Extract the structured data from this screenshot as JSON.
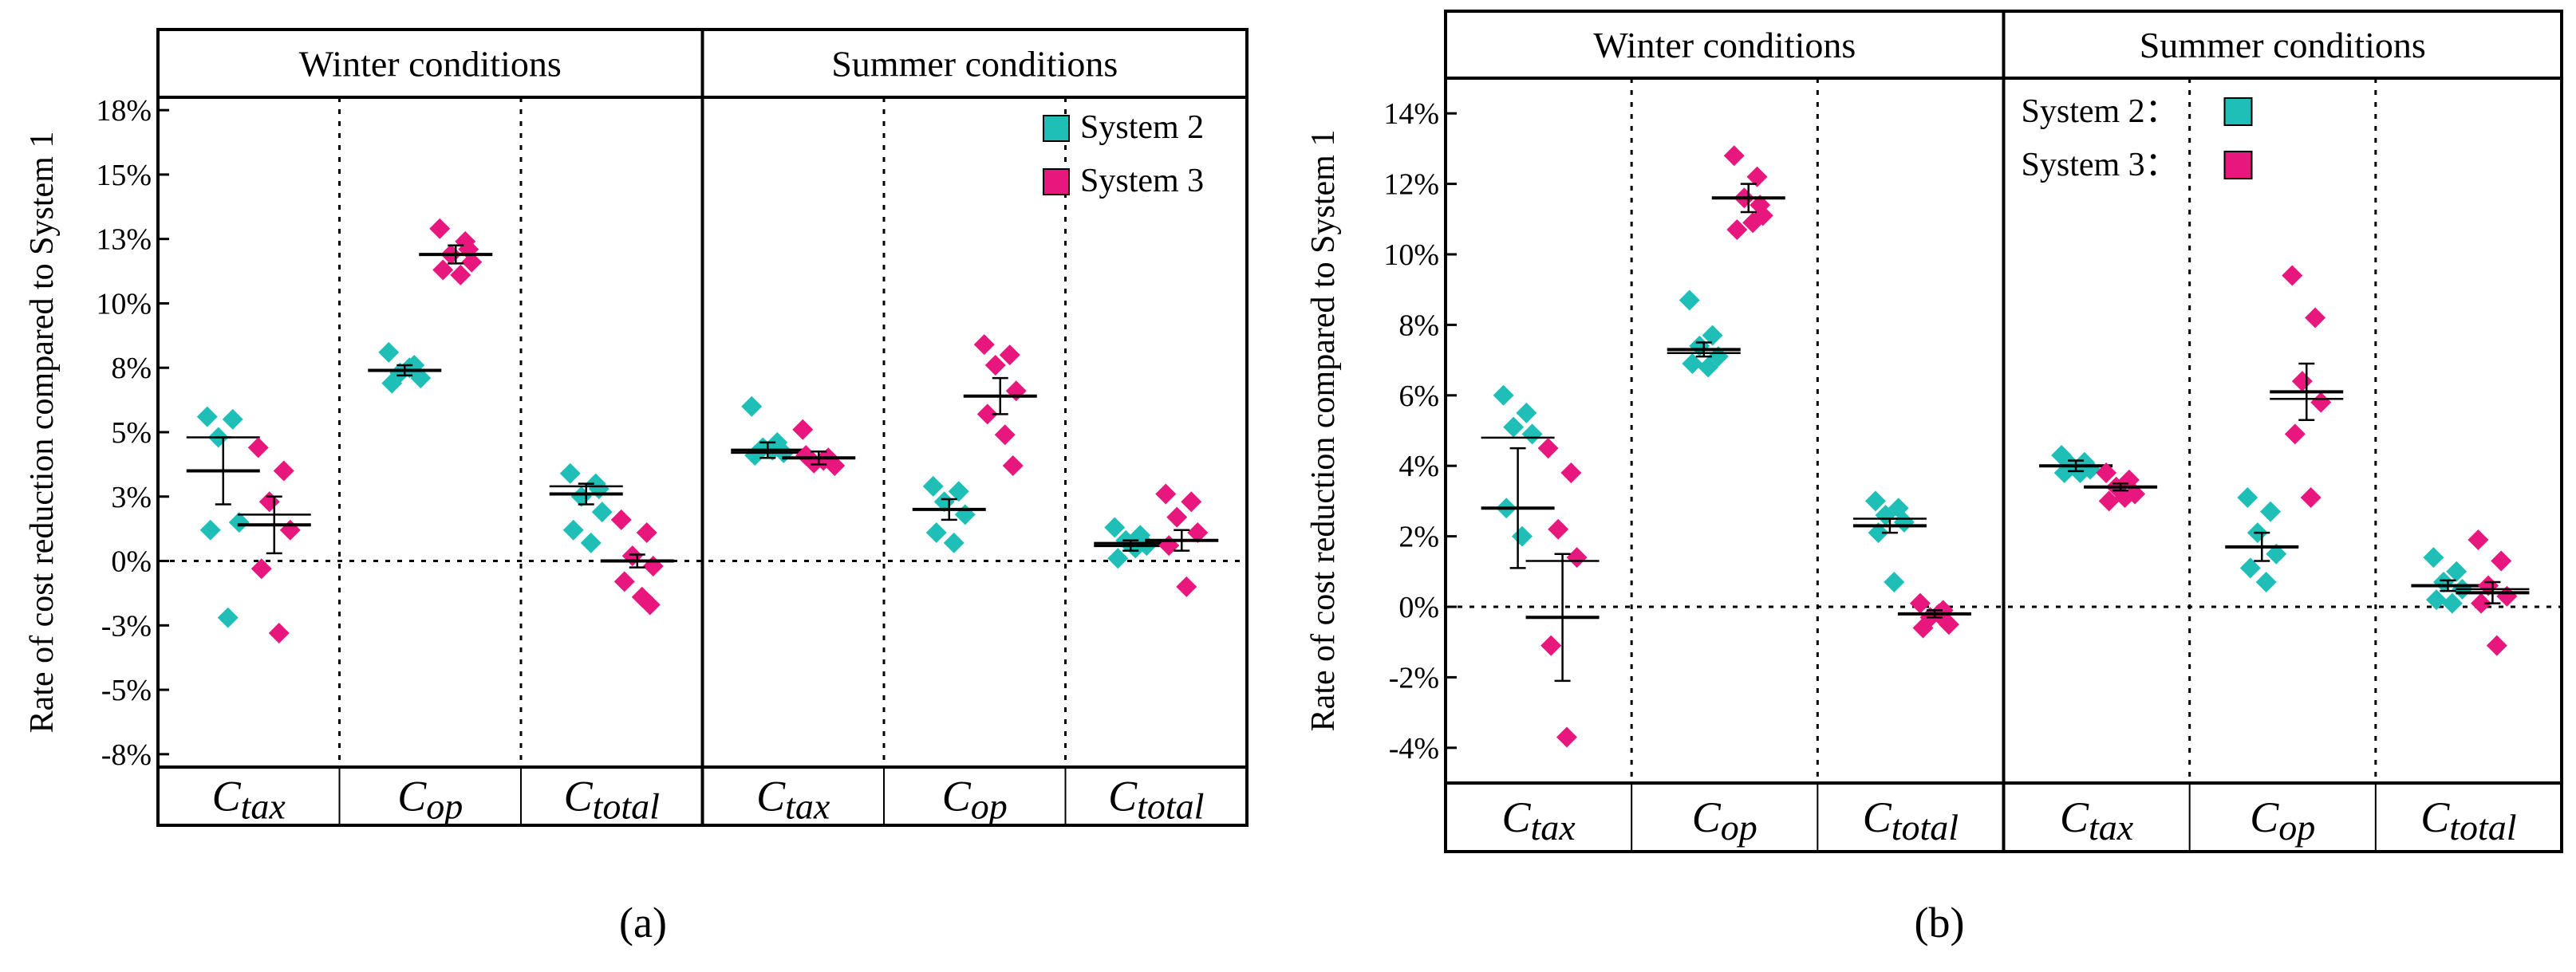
{
  "colors": {
    "system2": "#1fbfb8",
    "system3": "#e8177d",
    "frame": "#000000"
  },
  "chart_data": [
    {
      "type": "scatter",
      "panel_label": "(a)",
      "ylabel": "Rate of cost reduction compared to System 1",
      "ylim": [
        -8,
        18
      ],
      "yticks": [
        {
          "v": -7.5,
          "label": "-8%"
        },
        {
          "v": -5,
          "label": "-5%"
        },
        {
          "v": -2.5,
          "label": "-3%"
        },
        {
          "v": 0,
          "label": "0%"
        },
        {
          "v": 2.5,
          "label": "3%"
        },
        {
          "v": 5,
          "label": "5%"
        },
        {
          "v": 7.5,
          "label": "8%"
        },
        {
          "v": 10,
          "label": "10%"
        },
        {
          "v": 12.5,
          "label": "13%"
        },
        {
          "v": 15,
          "label": "15%"
        },
        {
          "v": 17.5,
          "label": "18%"
        }
      ],
      "groups": [
        "Winter  conditions",
        "Summer conditions"
      ],
      "categories": [
        {
          "base": "C",
          "sub": "tax"
        },
        {
          "base": "C",
          "sub": "op"
        },
        {
          "base": "C",
          "sub": "total"
        },
        {
          "base": "C",
          "sub": "tax"
        },
        {
          "base": "C",
          "sub": "op"
        },
        {
          "base": "C",
          "sub": "total"
        }
      ],
      "legend": {
        "style": "box",
        "entries": [
          "System 2",
          "System 3"
        ]
      },
      "series": [
        {
          "name": "System 2",
          "points": [
            [
              5.6,
              5.5,
              4.8,
              1.5,
              1.2,
              -2.2
            ],
            [
              8.1,
              7.6,
              7.3,
              7.1,
              6.9,
              7.5
            ],
            [
              3.4,
              3.0,
              2.5,
              1.9,
              1.2,
              0.7,
              2.8
            ],
            [
              6.0,
              4.6,
              4.4,
              4.2,
              4.1,
              4.3
            ],
            [
              2.9,
              2.7,
              2.3,
              1.8,
              1.1,
              0.7
            ],
            [
              1.3,
              1.0,
              0.8,
              0.6,
              0.1,
              0.5
            ]
          ],
          "means": [
            3.5,
            7.4,
            2.6,
            4.3,
            2.0,
            0.6
          ],
          "medians": [
            4.8,
            null,
            2.9,
            4.2,
            null,
            0.7
          ],
          "errors": [
            1.3,
            0.2,
            0.4,
            0.3,
            0.4,
            0.2
          ]
        },
        {
          "name": "System 3",
          "points": [
            [
              4.4,
              3.5,
              2.3,
              1.2,
              -0.3,
              -2.8
            ],
            [
              12.9,
              12.4,
              11.9,
              11.6,
              11.3,
              11.1,
              12.1
            ],
            [
              1.6,
              1.1,
              0.2,
              -0.2,
              -0.8,
              -1.4,
              -1.7
            ],
            [
              5.1,
              4.0,
              3.8,
              3.7,
              4.1,
              3.9
            ],
            [
              8.4,
              8.0,
              7.6,
              6.6,
              5.7,
              4.9,
              3.7
            ],
            [
              2.6,
              2.3,
              1.7,
              1.1,
              0.6,
              -1.0
            ]
          ],
          "means": [
            1.4,
            11.9,
            0.0,
            4.0,
            6.4,
            0.8
          ],
          "medians": [
            1.8,
            null,
            null,
            null,
            null,
            null
          ],
          "errors": [
            1.1,
            0.35,
            0.25,
            0.25,
            0.7,
            0.4
          ]
        }
      ]
    },
    {
      "type": "scatter",
      "panel_label": "(b)",
      "ylabel": "Rate of cost reduction compared to System 1",
      "ylim": [
        -5,
        15
      ],
      "yticks": [
        {
          "v": -4,
          "label": "-4%"
        },
        {
          "v": -2,
          "label": "-2%"
        },
        {
          "v": 0,
          "label": "0%"
        },
        {
          "v": 2,
          "label": "2%"
        },
        {
          "v": 4,
          "label": "4%"
        },
        {
          "v": 6,
          "label": "6%"
        },
        {
          "v": 8,
          "label": "8%"
        },
        {
          "v": 10,
          "label": "10%"
        },
        {
          "v": 12,
          "label": "12%"
        },
        {
          "v": 14,
          "label": "14%"
        }
      ],
      "groups": [
        "Winter  conditions",
        "Summer conditions"
      ],
      "categories": [
        {
          "base": "C",
          "sub": "tax"
        },
        {
          "base": "C",
          "sub": "op"
        },
        {
          "base": "C",
          "sub": "total"
        },
        {
          "base": "C",
          "sub": "tax"
        },
        {
          "base": "C",
          "sub": "op"
        },
        {
          "base": "C",
          "sub": "total"
        }
      ],
      "legend": {
        "style": "label-box",
        "entries": [
          "System 2：",
          "System 3："
        ]
      },
      "series": [
        {
          "name": "System 2",
          "points": [
            [
              6.0,
              5.5,
              5.1,
              4.9,
              2.8,
              2.0
            ],
            [
              8.7,
              7.7,
              7.4,
              7.1,
              6.9,
              6.8
            ],
            [
              3.0,
              2.8,
              2.6,
              2.4,
              2.1,
              0.7
            ],
            [
              4.3,
              4.1,
              4.0,
              3.9,
              3.8,
              3.8
            ],
            [
              3.1,
              2.7,
              2.1,
              1.5,
              1.1,
              0.7
            ],
            [
              1.4,
              1.0,
              0.7,
              0.5,
              0.2,
              0.1
            ]
          ],
          "means": [
            2.8,
            7.3,
            2.3,
            4.0,
            1.7,
            0.6
          ],
          "medians": [
            4.8,
            7.2,
            2.5,
            null,
            null,
            null
          ],
          "errors": [
            1.7,
            0.2,
            0.2,
            0.15,
            0.4,
            0.15
          ]
        },
        {
          "name": "System 3",
          "points": [
            [
              4.5,
              3.8,
              2.2,
              1.4,
              -1.1,
              -3.7
            ],
            [
              12.8,
              12.2,
              11.6,
              11.1,
              10.7,
              10.9,
              11.4
            ],
            [
              0.1,
              -0.1,
              -0.3,
              -0.5,
              -0.6,
              -0.2
            ],
            [
              3.8,
              3.6,
              3.4,
              3.2,
              3.0,
              3.1
            ],
            [
              9.4,
              8.2,
              6.4,
              5.8,
              4.9,
              3.1
            ],
            [
              1.9,
              1.3,
              0.6,
              0.3,
              0.1,
              -1.1
            ]
          ],
          "means": [
            -0.3,
            11.6,
            -0.2,
            3.4,
            6.1,
            0.4
          ],
          "medians": [
            1.3,
            null,
            null,
            null,
            5.9,
            0.5
          ],
          "errors": [
            1.8,
            0.4,
            0.1,
            0.1,
            0.8,
            0.3
          ]
        }
      ]
    }
  ]
}
